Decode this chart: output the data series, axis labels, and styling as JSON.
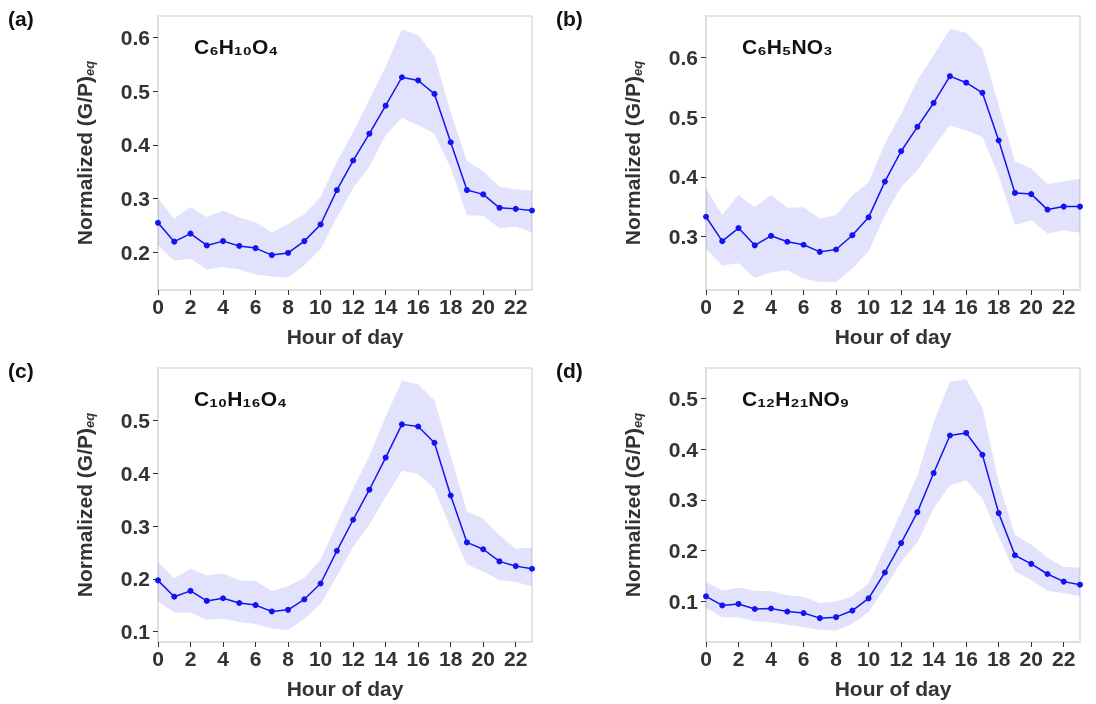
{
  "chart_data": [
    {
      "type": "line",
      "title": "(a)",
      "annotations": [
        "C₆H₁₀O₄"
      ],
      "xlabel": "Hour of day",
      "ylabel": "Normalized (G/P)$_{eq}$",
      "marker": "circle",
      "line_style": "solid",
      "grid": false,
      "x": [
        0,
        1,
        2,
        3,
        4,
        5,
        6,
        7,
        8,
        9,
        10,
        11,
        12,
        13,
        14,
        15,
        16,
        17,
        18,
        19,
        20,
        21,
        22,
        23
      ],
      "xlim": [
        0,
        23
      ],
      "xticks": [
        0,
        2,
        4,
        6,
        8,
        10,
        12,
        14,
        16,
        18,
        20,
        22
      ],
      "ylim": [
        0.13,
        0.64
      ],
      "yticks": [
        0.2,
        0.3,
        0.4,
        0.5,
        0.6
      ],
      "series": [
        {
          "color": "#1414f0",
          "values": [
            0.255,
            0.22,
            0.235,
            0.213,
            0.221,
            0.212,
            0.208,
            0.195,
            0.199,
            0.221,
            0.252,
            0.316,
            0.371,
            0.421,
            0.473,
            0.526,
            0.52,
            0.495,
            0.405,
            0.316,
            0.308,
            0.283,
            0.281,
            0.278
          ],
          "upper": [
            0.3,
            0.263,
            0.284,
            0.266,
            0.278,
            0.265,
            0.256,
            0.237,
            0.253,
            0.271,
            0.303,
            0.369,
            0.424,
            0.485,
            0.546,
            0.615,
            0.604,
            0.566,
            0.461,
            0.37,
            0.351,
            0.322,
            0.317,
            0.315
          ],
          "lower": [
            0.213,
            0.185,
            0.188,
            0.168,
            0.173,
            0.168,
            0.159,
            0.155,
            0.153,
            0.176,
            0.206,
            0.265,
            0.32,
            0.36,
            0.418,
            0.45,
            0.437,
            0.421,
            0.357,
            0.269,
            0.268,
            0.245,
            0.248,
            0.237
          ]
        }
      ]
    },
    {
      "type": "line",
      "title": "(b)",
      "annotations": [
        "C₆H₅NO₃"
      ],
      "xlabel": "Hour of day",
      "ylabel": "Normalized (G/P)$_{eq}$",
      "marker": "circle",
      "line_style": "solid",
      "grid": false,
      "x": [
        0,
        1,
        2,
        3,
        4,
        5,
        6,
        7,
        8,
        9,
        10,
        11,
        12,
        13,
        14,
        15,
        16,
        17,
        18,
        19,
        20,
        21,
        22,
        23
      ],
      "xlim": [
        0,
        23
      ],
      "xticks": [
        0,
        2,
        4,
        6,
        8,
        10,
        12,
        14,
        16,
        18,
        20,
        22
      ],
      "ylim": [
        0.21,
        0.67
      ],
      "yticks": [
        0.3,
        0.4,
        0.5,
        0.6
      ],
      "series": [
        {
          "color": "#1414f0",
          "values": [
            0.333,
            0.292,
            0.314,
            0.285,
            0.301,
            0.291,
            0.286,
            0.274,
            0.278,
            0.302,
            0.332,
            0.392,
            0.443,
            0.484,
            0.524,
            0.569,
            0.558,
            0.541,
            0.461,
            0.373,
            0.371,
            0.345,
            0.35,
            0.35
          ],
          "upper": [
            0.38,
            0.336,
            0.37,
            0.349,
            0.37,
            0.348,
            0.349,
            0.33,
            0.336,
            0.369,
            0.391,
            0.456,
            0.506,
            0.562,
            0.604,
            0.648,
            0.642,
            0.615,
            0.52,
            0.426,
            0.414,
            0.388,
            0.392,
            0.397
          ],
          "lower": [
            0.279,
            0.251,
            0.255,
            0.23,
            0.24,
            0.243,
            0.229,
            0.224,
            0.224,
            0.246,
            0.275,
            0.335,
            0.383,
            0.411,
            0.45,
            0.486,
            0.478,
            0.467,
            0.402,
            0.319,
            0.327,
            0.305,
            0.31,
            0.306
          ]
        }
      ]
    },
    {
      "type": "line",
      "title": "(c)",
      "annotations": [
        "C₁₀H₁₆O₄"
      ],
      "xlabel": "Hour of day",
      "ylabel": "Normalized (G/P)$_{eq}$",
      "marker": "circle",
      "line_style": "solid",
      "grid": false,
      "x": [
        0,
        1,
        2,
        3,
        4,
        5,
        6,
        7,
        8,
        9,
        10,
        11,
        12,
        13,
        14,
        15,
        16,
        17,
        18,
        19,
        20,
        21,
        22,
        23
      ],
      "xlim": [
        0,
        23
      ],
      "xticks": [
        0,
        2,
        4,
        6,
        8,
        10,
        12,
        14,
        16,
        18,
        20,
        22
      ],
      "ylim": [
        0.08,
        0.6
      ],
      "yticks": [
        0.1,
        0.2,
        0.3,
        0.4,
        0.5
      ],
      "series": [
        {
          "color": "#1414f0",
          "values": [
            0.197,
            0.166,
            0.177,
            0.158,
            0.163,
            0.154,
            0.15,
            0.138,
            0.141,
            0.161,
            0.191,
            0.253,
            0.312,
            0.369,
            0.43,
            0.493,
            0.489,
            0.458,
            0.358,
            0.269,
            0.256,
            0.233,
            0.224,
            0.219
          ],
          "upper": [
            0.232,
            0.201,
            0.219,
            0.206,
            0.21,
            0.197,
            0.196,
            0.177,
            0.186,
            0.202,
            0.236,
            0.305,
            0.371,
            0.433,
            0.508,
            0.576,
            0.569,
            0.539,
            0.433,
            0.328,
            0.314,
            0.283,
            0.257,
            0.259
          ],
          "lower": [
            0.158,
            0.136,
            0.136,
            0.122,
            0.124,
            0.118,
            0.114,
            0.105,
            0.103,
            0.124,
            0.152,
            0.205,
            0.261,
            0.303,
            0.355,
            0.405,
            0.399,
            0.371,
            0.296,
            0.227,
            0.214,
            0.197,
            0.194,
            0.186
          ]
        }
      ]
    },
    {
      "type": "line",
      "title": "(d)",
      "annotations": [
        "C₁₂H₂₁NO₉"
      ],
      "xlabel": "Hour of day",
      "ylabel": "Normalized (G/P)$_{eq}$",
      "marker": "circle",
      "line_style": "solid",
      "grid": false,
      "x": [
        0,
        1,
        2,
        3,
        4,
        5,
        6,
        7,
        8,
        9,
        10,
        11,
        12,
        13,
        14,
        15,
        16,
        17,
        18,
        19,
        20,
        21,
        22,
        23
      ],
      "xlim": [
        0,
        23
      ],
      "xticks": [
        0,
        2,
        4,
        6,
        8,
        10,
        12,
        14,
        16,
        18,
        20,
        22
      ],
      "ylim": [
        0.02,
        0.56
      ],
      "yticks": [
        0.1,
        0.2,
        0.3,
        0.4,
        0.5
      ],
      "series": [
        {
          "color": "#1414f0",
          "values": [
            0.11,
            0.092,
            0.095,
            0.085,
            0.086,
            0.08,
            0.077,
            0.067,
            0.069,
            0.082,
            0.106,
            0.157,
            0.215,
            0.276,
            0.353,
            0.427,
            0.432,
            0.389,
            0.274,
            0.191,
            0.174,
            0.154,
            0.139,
            0.133
          ],
          "upper": [
            0.138,
            0.121,
            0.127,
            0.121,
            0.12,
            0.112,
            0.109,
            0.097,
            0.1,
            0.11,
            0.136,
            0.205,
            0.276,
            0.348,
            0.453,
            0.533,
            0.538,
            0.482,
            0.335,
            0.231,
            0.212,
            0.186,
            0.168,
            0.167
          ],
          "lower": [
            0.087,
            0.069,
            0.069,
            0.061,
            0.059,
            0.054,
            0.049,
            0.044,
            0.042,
            0.056,
            0.079,
            0.126,
            0.178,
            0.216,
            0.283,
            0.329,
            0.339,
            0.303,
            0.227,
            0.159,
            0.142,
            0.121,
            0.116,
            0.11
          ]
        }
      ]
    }
  ]
}
